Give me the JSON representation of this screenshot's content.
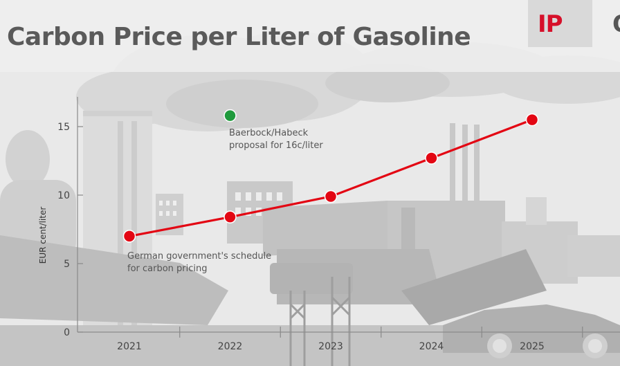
{
  "title": "Carbon Price per Liter of Gasoline",
  "logo": {
    "text_red": "IP",
    "text_gray": "Q"
  },
  "colors": {
    "series": "#e30613",
    "proposal": "#1f9a3c",
    "axis": "#888888",
    "title": "#5a5a5a"
  },
  "chart_data": {
    "type": "line",
    "title": "Carbon Price per Liter of Gasoline",
    "xlabel": "",
    "ylabel": "EUR cent/liter",
    "x": [
      2021,
      2022,
      2023,
      2024,
      2025
    ],
    "x_tick_labels": [
      "2021",
      "2022",
      "2023",
      "2024",
      "2025"
    ],
    "y_ticks": [
      0,
      5,
      10,
      15
    ],
    "y_tick_labels": [
      "0",
      "5",
      "10",
      "15"
    ],
    "ylim": [
      0,
      17
    ],
    "series": [
      {
        "name": "German government's schedule for carbon pricing",
        "values": [
          7.0,
          8.4,
          9.9,
          12.7,
          15.5
        ]
      }
    ],
    "proposal_point": {
      "x": 2022,
      "value": 15.8
    },
    "annotations": [
      {
        "id": "schedule",
        "lines": [
          "German government's schedule",
          "for carbon pricing"
        ]
      },
      {
        "id": "proposal",
        "lines": [
          "Baerbock/Habeck",
          "proposal for 16c/liter"
        ]
      }
    ]
  }
}
